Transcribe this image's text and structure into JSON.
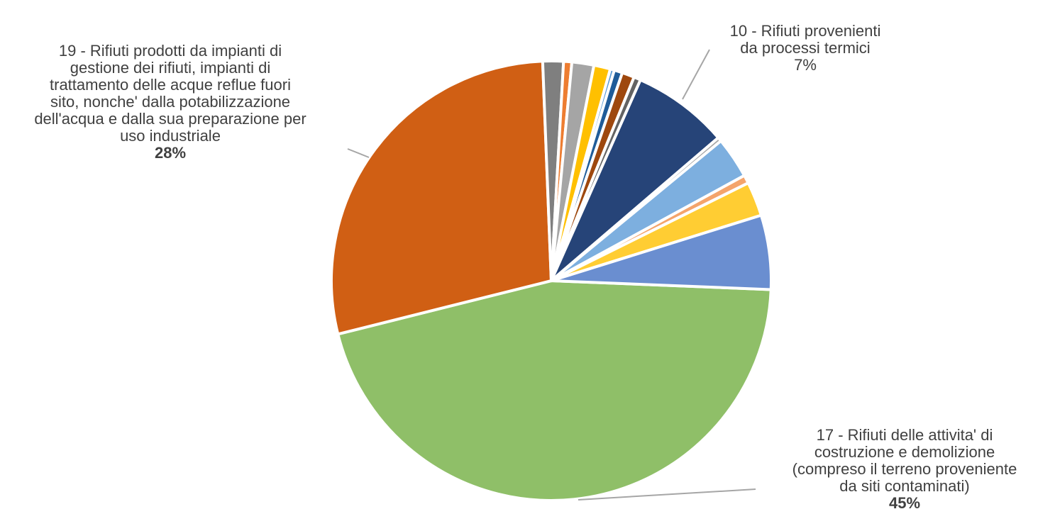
{
  "chart_data": {
    "type": "pie",
    "title": "",
    "slices": [
      {
        "value": 45.0,
        "color": "#8FBF68"
      },
      {
        "value": 28.0,
        "color": "#D05F14"
      },
      {
        "value": 1.5,
        "color": "#7F7F7F"
      },
      {
        "value": 0.6,
        "color": "#ED7D31"
      },
      {
        "value": 1.6,
        "color": "#A5A5A5"
      },
      {
        "value": 1.2,
        "color": "#FFC000"
      },
      {
        "value": 0.3,
        "color": "#5B9BD5"
      },
      {
        "value": 0.6,
        "color": "#1F5C99"
      },
      {
        "value": 0.9,
        "color": "#9E480E"
      },
      {
        "value": 0.5,
        "color": "#636363"
      },
      {
        "value": 7.0,
        "color": "#264478"
      },
      {
        "value": 0.3,
        "color": "#A5A5A5"
      },
      {
        "value": 3.0,
        "color": "#7DAFDF"
      },
      {
        "value": 0.6,
        "color": "#F4A46B"
      },
      {
        "value": 2.5,
        "color": "#FFCD33"
      },
      {
        "value": 5.4,
        "color": "#6A8ED0"
      }
    ],
    "data_labels": [
      {
        "text": "19 - Rifiuti prodotti da impianti di\ngestione dei rifiuti, impianti di\ntrattamento delle acque reflue fuori\nsito, nonche' dalla potabilizzazione\ndell'acqua e dalla sua preparazione per\nuso industriale",
        "percent": "28%",
        "bold": true,
        "slice": 1
      },
      {
        "text": "10 - Rifiuti provenienti\nda processi termici",
        "percent": "7%",
        "bold": false,
        "slice": 10
      },
      {
        "text": "17 - Rifiuti delle attivita' di\ncostruzione e demolizione\n(compreso il terreno proveniente\nda siti contaminati)",
        "percent": "45%",
        "bold": true,
        "slice": 0
      }
    ]
  }
}
